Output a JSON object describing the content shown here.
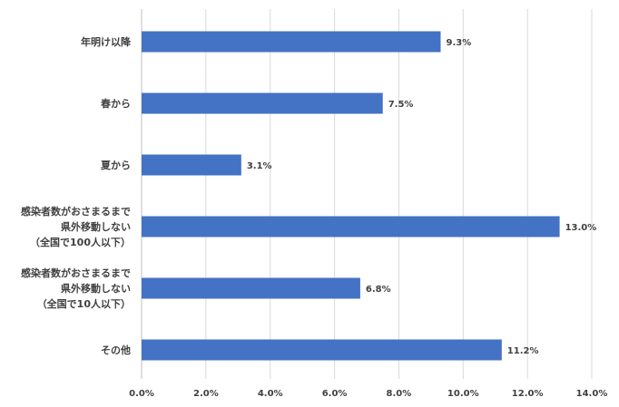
{
  "chart_data": {
    "type": "bar",
    "orientation": "horizontal",
    "categories": [
      [
        "年明け以降"
      ],
      [
        "春から"
      ],
      [
        "夏から"
      ],
      [
        "感染者数がおさまるまで",
        "県外移動しない",
        "（全国で100人以下）"
      ],
      [
        "感染者数がおさまるまで",
        "県外移動しない",
        "（全国で10人以下）"
      ],
      [
        "その他"
      ]
    ],
    "values": [
      9.3,
      7.5,
      3.1,
      13.0,
      6.8,
      11.2
    ],
    "data_labels": [
      "9.3%",
      "7.5%",
      "3.1%",
      "13.0%",
      "6.8%",
      "11.2%"
    ],
    "xlim": [
      0,
      14
    ],
    "x_ticks": [
      0,
      2,
      4,
      6,
      8,
      10,
      12,
      14
    ],
    "x_tick_labels": [
      "0.0%",
      "2.0%",
      "4.0%",
      "6.0%",
      "8.0%",
      "10.0%",
      "12.0%",
      "14.0%"
    ],
    "title": "",
    "xlabel": "",
    "ylabel": "",
    "grid": "vertical",
    "bar_color": "#4472C4"
  }
}
